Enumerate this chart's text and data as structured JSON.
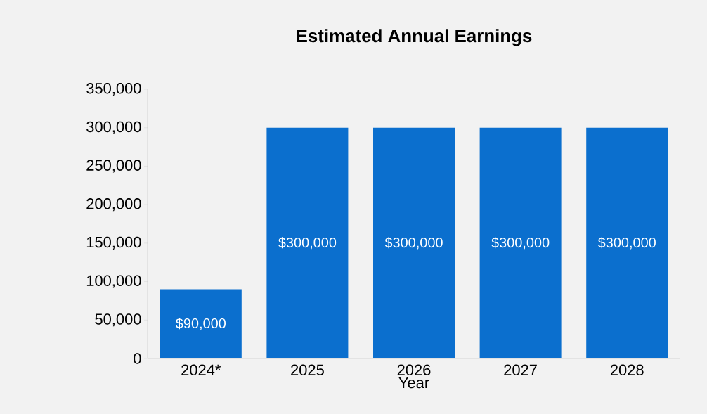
{
  "chart_data": {
    "type": "bar",
    "title": "Estimated Annual Earnings",
    "xlabel": "Year",
    "categories": [
      "2024*",
      "2025",
      "2026",
      "2027",
      "2028"
    ],
    "values": [
      90000,
      300000,
      300000,
      300000,
      300000
    ],
    "value_labels": [
      "$90,000",
      "$300,000",
      "$300,000",
      "$300,000",
      "$300,000"
    ],
    "color": "#0b6fce",
    "ylim": [
      0,
      350000
    ],
    "yticks": [
      {
        "value": 0,
        "label": "0"
      },
      {
        "value": 50000,
        "label": "50,000"
      },
      {
        "value": 100000,
        "label": "100,000"
      },
      {
        "value": 150000,
        "label": "150,000"
      },
      {
        "value": 200000,
        "label": "200,000"
      },
      {
        "value": 250000,
        "label": "250,000"
      },
      {
        "value": 300000,
        "label": "300,000"
      },
      {
        "value": 350000,
        "label": "350,000"
      }
    ]
  }
}
